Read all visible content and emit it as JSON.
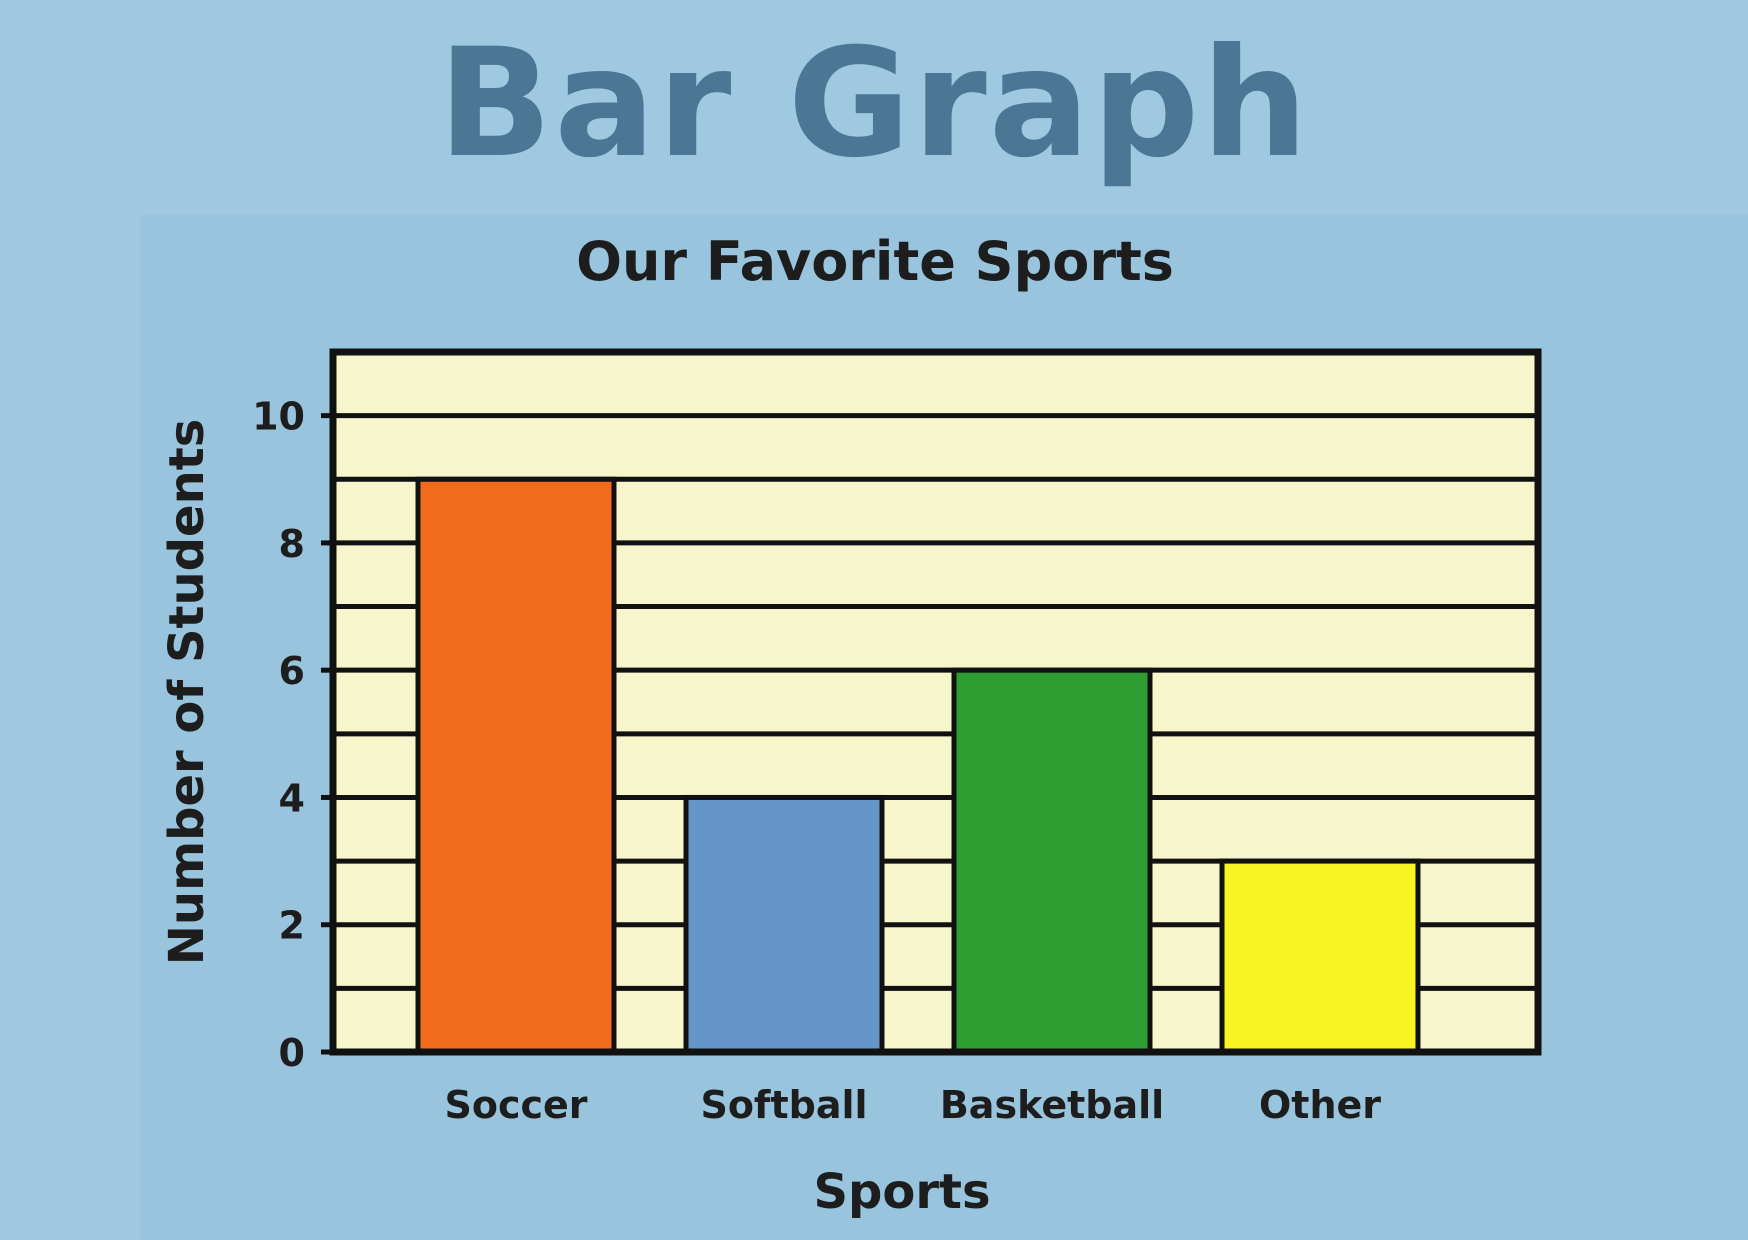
{
  "poster": {
    "title": "Bar Graph"
  },
  "colors": {
    "background": "#9ec9e0",
    "title": "#497794",
    "plot_background": "#f7f5cc",
    "gridline": "#111111"
  },
  "chart_data": {
    "type": "bar",
    "title": "Our Favorite Sports",
    "xlabel": "Sports",
    "ylabel": "Number of Students",
    "categories": [
      "Soccer",
      "Softball",
      "Basketball",
      "Other"
    ],
    "values": [
      9,
      4,
      6,
      3
    ],
    "bar_colors": [
      "#f26b1d",
      "#6596c8",
      "#2f9e32",
      "#f6f523"
    ],
    "ylim": [
      0,
      11
    ],
    "yticks": [
      "0",
      "2",
      "4",
      "6",
      "8",
      "10"
    ],
    "grid": true,
    "legend": "none"
  }
}
